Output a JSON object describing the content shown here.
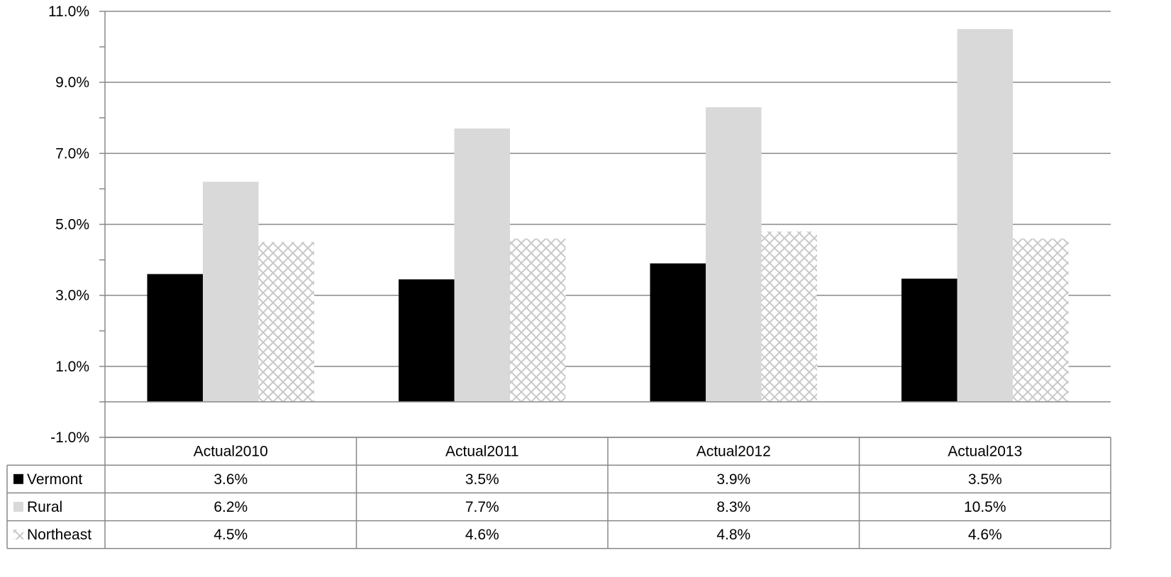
{
  "chart_data": {
    "type": "bar",
    "categories": [
      "Actual2010",
      "Actual2011",
      "Actual2012",
      "Actual2013"
    ],
    "series": [
      {
        "name": "Vermont",
        "values": [
          3.6,
          3.45,
          3.9,
          3.47
        ],
        "labels": [
          "3.6%",
          "3.5%",
          "3.9%",
          "3.5%"
        ],
        "color": "#000000",
        "pattern": "solid"
      },
      {
        "name": "Rural",
        "values": [
          6.2,
          7.7,
          8.3,
          10.5
        ],
        "labels": [
          "6.2%",
          "7.7%",
          "8.3%",
          "10.5%"
        ],
        "color": "#d9d9d9",
        "pattern": "solid"
      },
      {
        "name": "Northeast",
        "values": [
          4.5,
          4.6,
          4.8,
          4.6
        ],
        "labels": [
          "4.5%",
          "4.6%",
          "4.8%",
          "4.6%"
        ],
        "color": "#d9d9d9",
        "pattern": "crosshatch"
      }
    ],
    "yticks": [
      -1.0,
      1.0,
      3.0,
      5.0,
      7.0,
      9.0,
      11.0
    ],
    "ytick_labels": [
      "-1.0%",
      "1.0%",
      "3.0%",
      "5.0%",
      "7.0%",
      "9.0%",
      "11.0%"
    ],
    "ylim": [
      -1.0,
      11.0
    ],
    "grid": true,
    "legend": "data-table",
    "title": "",
    "xlabel": "",
    "ylabel": ""
  }
}
